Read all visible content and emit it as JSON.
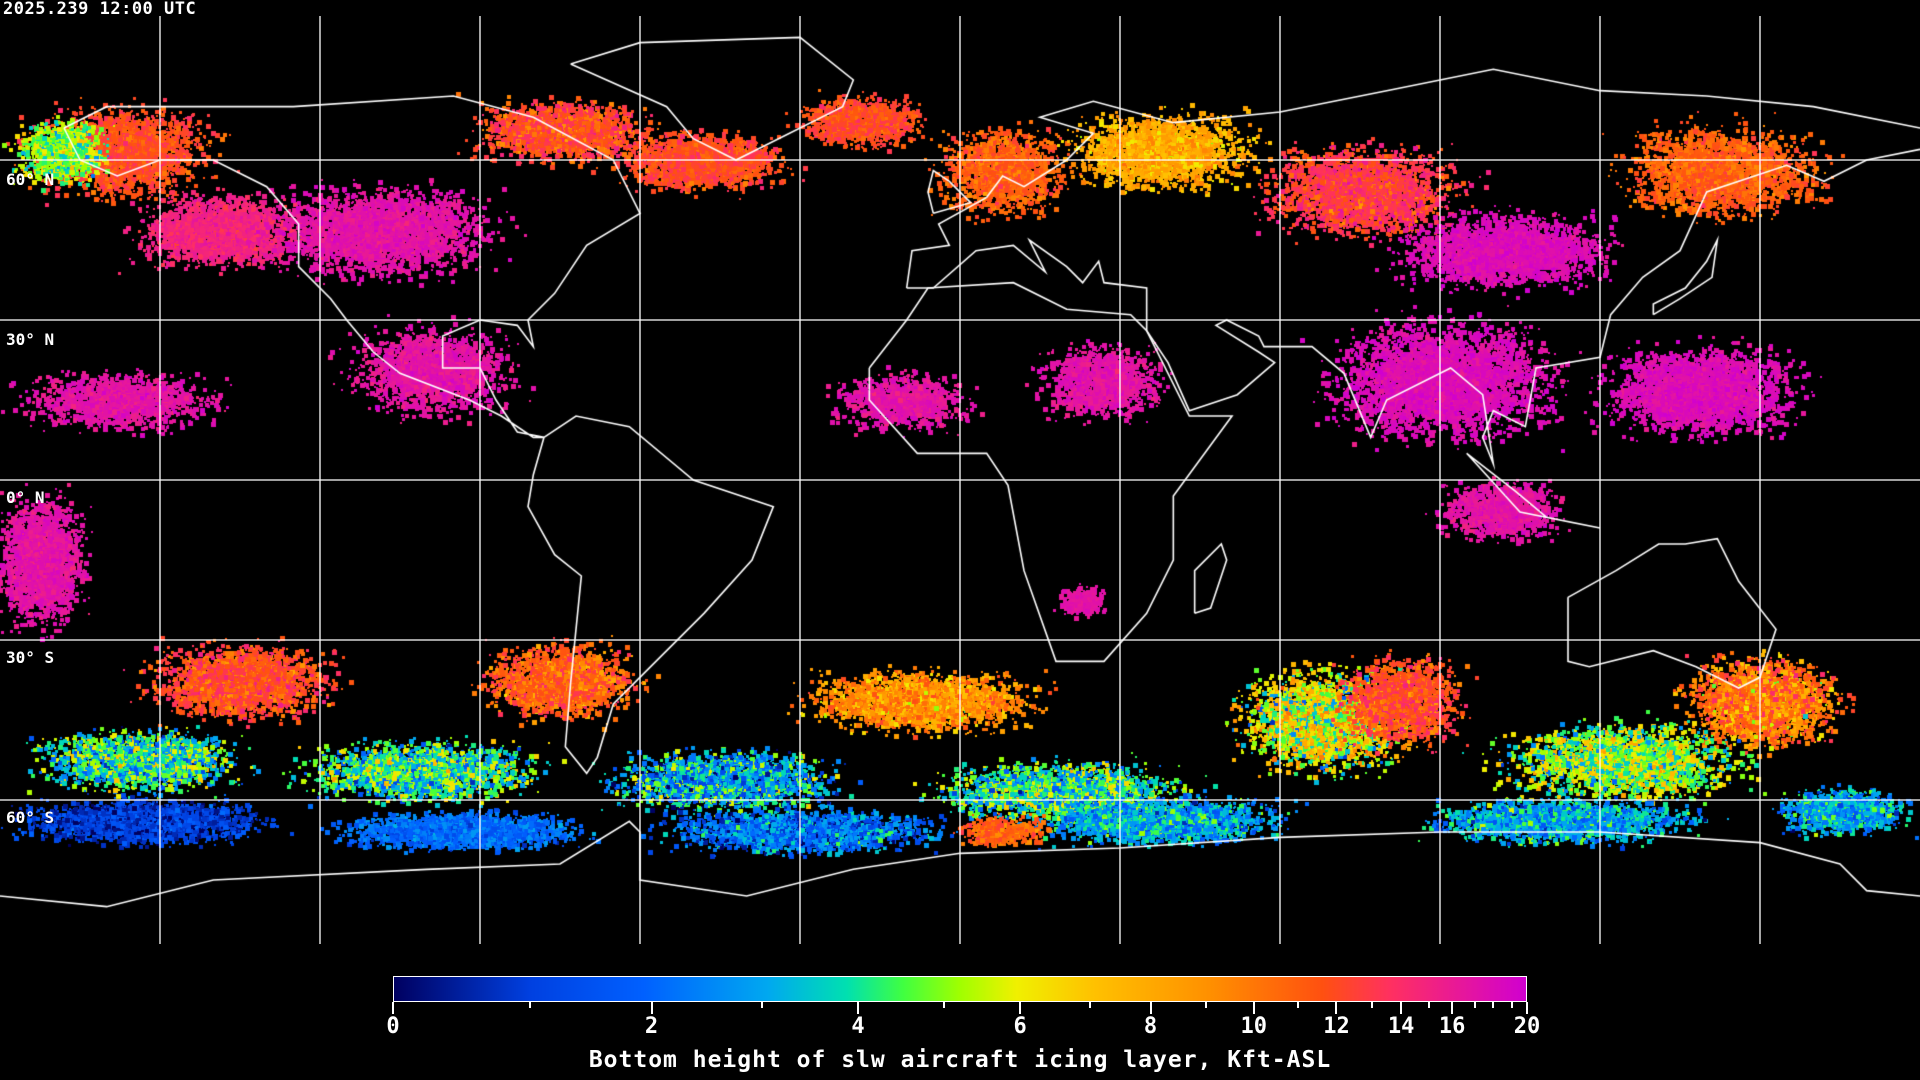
{
  "header": {
    "timestamp": "2025.239 12:00 UTC"
  },
  "map": {
    "projection": "equirectangular",
    "lon_range": [
      -180,
      180
    ],
    "lat_range": [
      -90,
      90
    ],
    "graticule_spacing_deg": 30,
    "lat_labels": [
      "60° N",
      "30° N",
      "0° N",
      "30° S",
      "60° S"
    ],
    "background_color": "#000000",
    "coastline_color": "#ffffff",
    "grid_color": "#ffffff"
  },
  "colorbar": {
    "title": "Bottom height of slw aircraft icing layer, Kft-ASL",
    "range": [
      0,
      20
    ],
    "tick_labels": [
      "0",
      "2",
      "4",
      "6",
      "8",
      "10",
      "12",
      "14",
      "16",
      "20"
    ],
    "tick_values": [
      0,
      2,
      4,
      6,
      8,
      10,
      12,
      14,
      16,
      20
    ],
    "minor_tick_values": [
      1,
      3,
      5,
      7,
      9,
      11,
      13,
      15,
      17,
      18,
      19
    ],
    "colors": [
      "#000060",
      "#0040e0",
      "#0060ff",
      "#00a8f0",
      "#00e0b0",
      "#40ff40",
      "#a0ff00",
      "#f0f000",
      "#ffc000",
      "#ff9000",
      "#ff5010",
      "#ff3060",
      "#d000d0"
    ]
  }
}
